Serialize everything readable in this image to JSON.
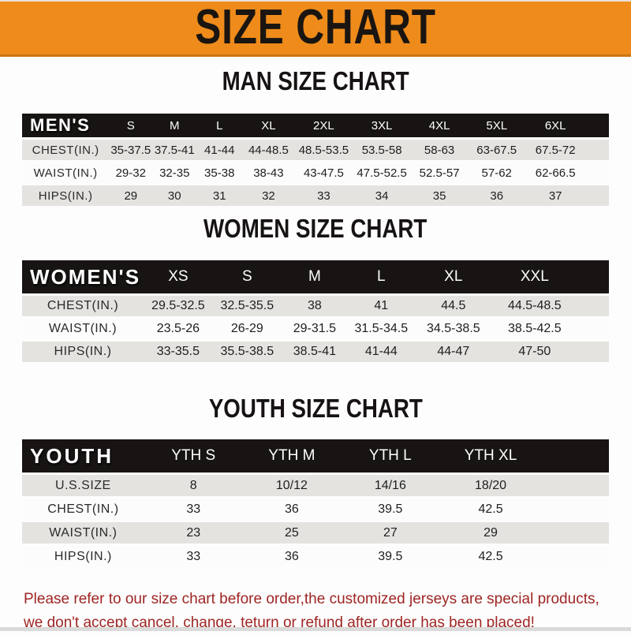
{
  "banner": {
    "title": "SIZE CHART"
  },
  "chart_data": [
    {
      "type": "table",
      "title": "MAN SIZE CHART",
      "corner_label": "MEN'S",
      "columns": [
        "S",
        "M",
        "L",
        "XL",
        "2XL",
        "3XL",
        "4XL",
        "5XL",
        "6XL"
      ],
      "rows": [
        {
          "label": "CHEST(IN.)",
          "values": [
            "35-37.5",
            "37.5-41",
            "41-44",
            "44-48.5",
            "48.5-53.5",
            "53.5-58",
            "58-63",
            "63-67.5",
            "67.5-72"
          ]
        },
        {
          "label": "WAIST(IN.)",
          "values": [
            "29-32",
            "32-35",
            "35-38",
            "38-43",
            "43-47.5",
            "47.5-52.5",
            "52.5-57",
            "57-62",
            "62-66.5"
          ]
        },
        {
          "label": "HIPS(IN.)",
          "values": [
            "29",
            "30",
            "31",
            "32",
            "33",
            "34",
            "35",
            "36",
            "37"
          ]
        }
      ]
    },
    {
      "type": "table",
      "title": "WOMEN SIZE CHART",
      "corner_label": "WOMEN'S",
      "columns": [
        "XS",
        "S",
        "M",
        "L",
        "XL",
        "XXL"
      ],
      "rows": [
        {
          "label": "CHEST(IN.)",
          "values": [
            "29.5-32.5",
            "32.5-35.5",
            "38",
            "41",
            "44.5",
            "44.5-48.5"
          ]
        },
        {
          "label": "WAIST(IN.)",
          "values": [
            "23.5-26",
            "26-29",
            "29-31.5",
            "31.5-34.5",
            "34.5-38.5",
            "38.5-42.5"
          ]
        },
        {
          "label": "HIPS(IN.)",
          "values": [
            "33-35.5",
            "35.5-38.5",
            "38.5-41",
            "41-44",
            "44-47",
            "47-50"
          ]
        }
      ]
    },
    {
      "type": "table",
      "title": "YOUTH SIZE CHART",
      "corner_label": "YOUTH",
      "columns": [
        "YTH S",
        "YTH M",
        "YTH L",
        "YTH XL"
      ],
      "rows": [
        {
          "label": "U.S.SIZE",
          "values": [
            "8",
            "10/12",
            "14/16",
            "18/20"
          ]
        },
        {
          "label": "CHEST(IN.)",
          "values": [
            "33",
            "36",
            "39.5",
            "42.5"
          ]
        },
        {
          "label": "WAIST(IN.)",
          "values": [
            "23",
            "25",
            "27",
            "29"
          ]
        },
        {
          "label": "HIPS(IN.)",
          "values": [
            "33",
            "36",
            "39.5",
            "42.5"
          ]
        }
      ]
    }
  ],
  "footer": {
    "line1": "Please refer to our size chart before order,the customized jerseys are special products,",
    "line2": "we don't accept cancel, change, teturn or refund after order has been placed!"
  },
  "colors": {
    "banner_orange": "#ee8b1b",
    "banner_orange_edge": "#c97712",
    "header_black": "#171413",
    "row_gray": "#e4e3e0",
    "background": "#fdfdfd",
    "footer_red": "#9e2523",
    "title_black": "#171313"
  }
}
